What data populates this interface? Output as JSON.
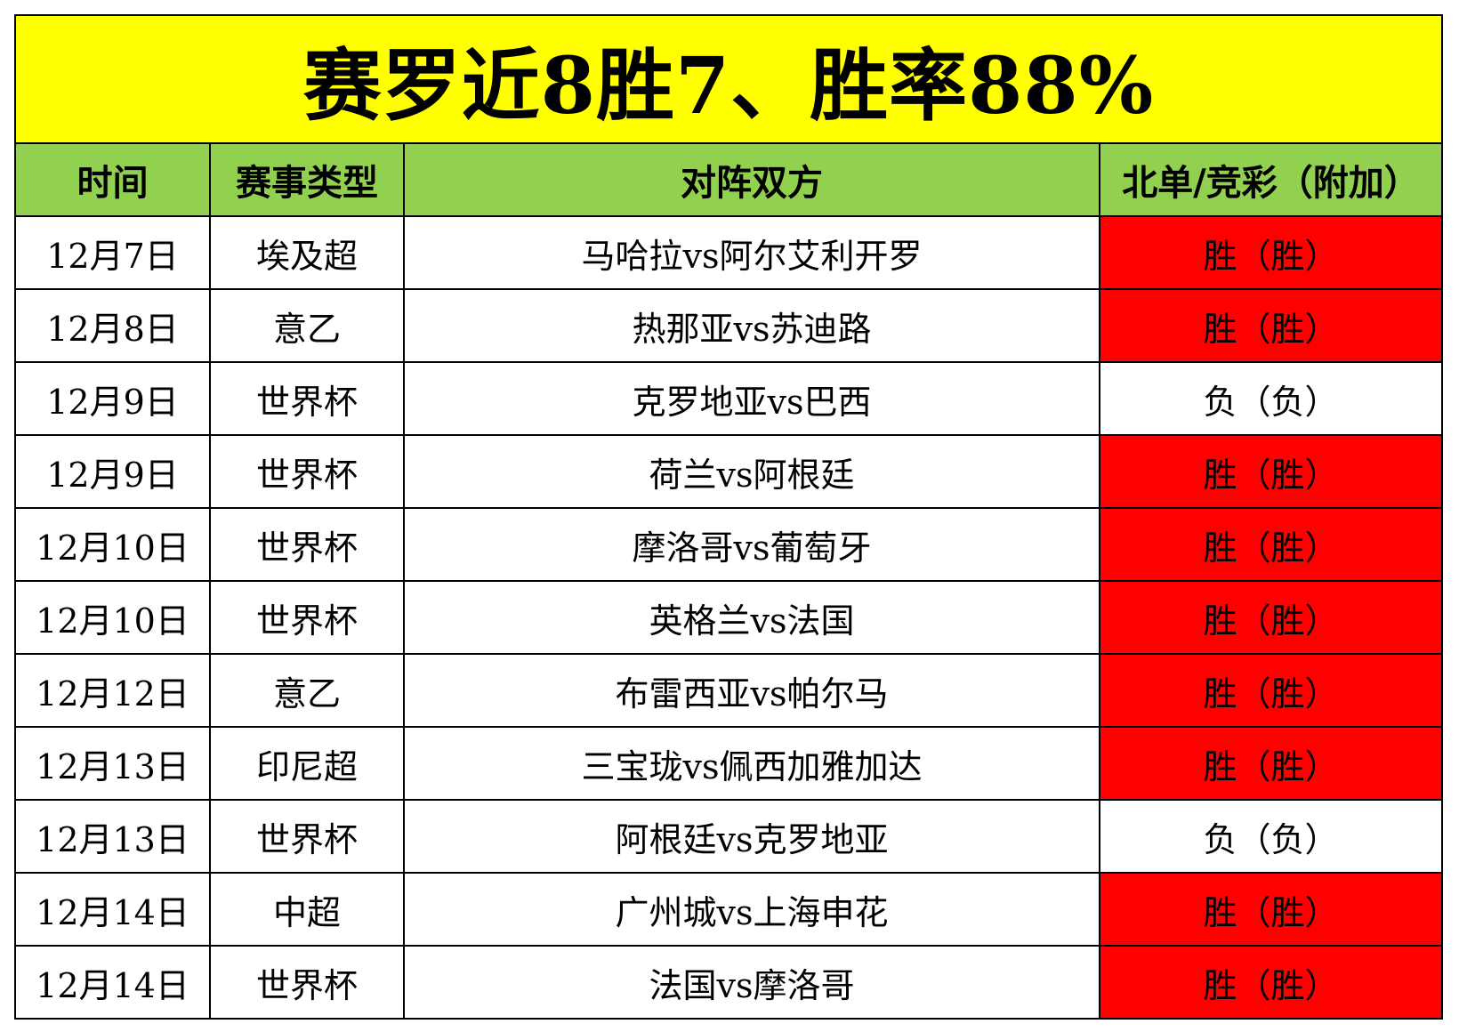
{
  "title": "赛罗近8胜7、胜率88%",
  "headers": {
    "time": "时间",
    "type": "赛事类型",
    "match": "对阵双方",
    "result": "北单/竞彩（附加）"
  },
  "colors": {
    "title_bg": "#ffff00",
    "header_bg": "#92d050",
    "win_bg": "#ff0000",
    "loss_bg": "#ffffff"
  },
  "rows": [
    {
      "time": "12月7日",
      "type": "埃及超",
      "match": "马哈拉vs阿尔艾利开罗",
      "result": "胜（胜）",
      "status": "win"
    },
    {
      "time": "12月8日",
      "type": "意乙",
      "match": "热那亚vs苏迪路",
      "result": "胜（胜）",
      "status": "win"
    },
    {
      "time": "12月9日",
      "type": "世界杯",
      "match": "克罗地亚vs巴西",
      "result": "负（负）",
      "status": "loss"
    },
    {
      "time": "12月9日",
      "type": "世界杯",
      "match": "荷兰vs阿根廷",
      "result": "胜（胜）",
      "status": "win"
    },
    {
      "time": "12月10日",
      "type": "世界杯",
      "match": "摩洛哥vs葡萄牙",
      "result": "胜（胜）",
      "status": "win"
    },
    {
      "time": "12月10日",
      "type": "世界杯",
      "match": "英格兰vs法国",
      "result": "胜（胜）",
      "status": "win"
    },
    {
      "time": "12月12日",
      "type": "意乙",
      "match": "布雷西亚vs帕尔马",
      "result": "胜（胜）",
      "status": "win"
    },
    {
      "time": "12月13日",
      "type": "印尼超",
      "match": "三宝珑vs佩西加雅加达",
      "result": "胜（胜）",
      "status": "win"
    },
    {
      "time": "12月13日",
      "type": "世界杯",
      "match": "阿根廷vs克罗地亚",
      "result": "负（负）",
      "status": "loss"
    },
    {
      "time": "12月14日",
      "type": "中超",
      "match": "广州城vs上海申花",
      "result": "胜（胜）",
      "status": "win"
    },
    {
      "time": "12月14日",
      "type": "世界杯",
      "match": "法国vs摩洛哥",
      "result": "胜（胜）",
      "status": "win"
    }
  ]
}
